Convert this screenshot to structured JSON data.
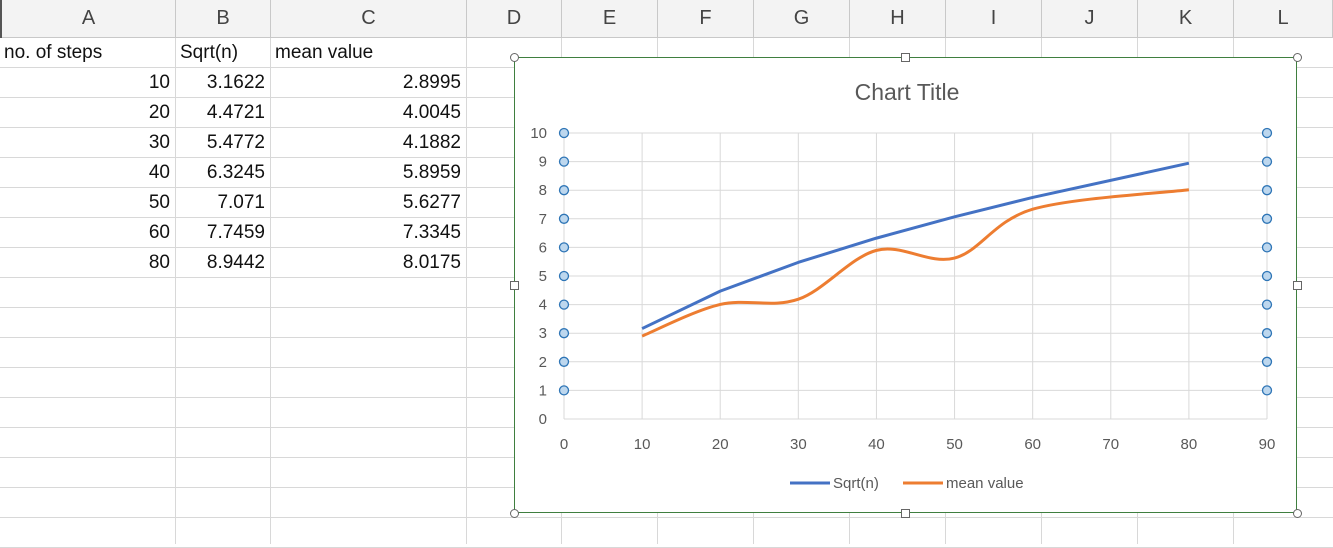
{
  "columns": [
    "A",
    "B",
    "C",
    "D",
    "E",
    "F",
    "G",
    "H",
    "I",
    "J",
    "K",
    "L"
  ],
  "sheet": {
    "headers": [
      "no. of steps",
      "Sqrt(n)",
      "mean value"
    ],
    "rows": [
      [
        "10",
        "3.1622",
        "2.8995"
      ],
      [
        "20",
        "4.4721",
        "4.0045"
      ],
      [
        "30",
        "5.4772",
        "4.1882"
      ],
      [
        "40",
        "6.3245",
        "5.8959"
      ],
      [
        "50",
        "7.071",
        "5.6277"
      ],
      [
        "60",
        "7.7459",
        "7.3345"
      ],
      [
        "80",
        "8.9442",
        "8.0175"
      ]
    ]
  },
  "chart_data": {
    "type": "line",
    "title": "Chart Title",
    "x": [
      10,
      20,
      30,
      40,
      50,
      60,
      80
    ],
    "xlim": [
      0,
      90
    ],
    "ylim": [
      0,
      10
    ],
    "x_ticks": [
      "0",
      "10",
      "20",
      "30",
      "40",
      "50",
      "60",
      "70",
      "80",
      "90"
    ],
    "y_ticks": [
      "0",
      "1",
      "2",
      "3",
      "4",
      "5",
      "6",
      "7",
      "8",
      "9",
      "10"
    ],
    "grid": true,
    "legend": "bottom",
    "series": [
      {
        "name": "Sqrt(n)",
        "values": [
          3.1622,
          4.4721,
          5.4772,
          6.3245,
          7.071,
          7.7459,
          8.9442
        ],
        "color": "#4472c4",
        "smooth": false
      },
      {
        "name": "mean value",
        "values": [
          2.8995,
          4.0045,
          4.1882,
          5.8959,
          5.6277,
          7.3345,
          8.0175
        ],
        "color": "#ed7d31",
        "smooth": true
      }
    ]
  }
}
